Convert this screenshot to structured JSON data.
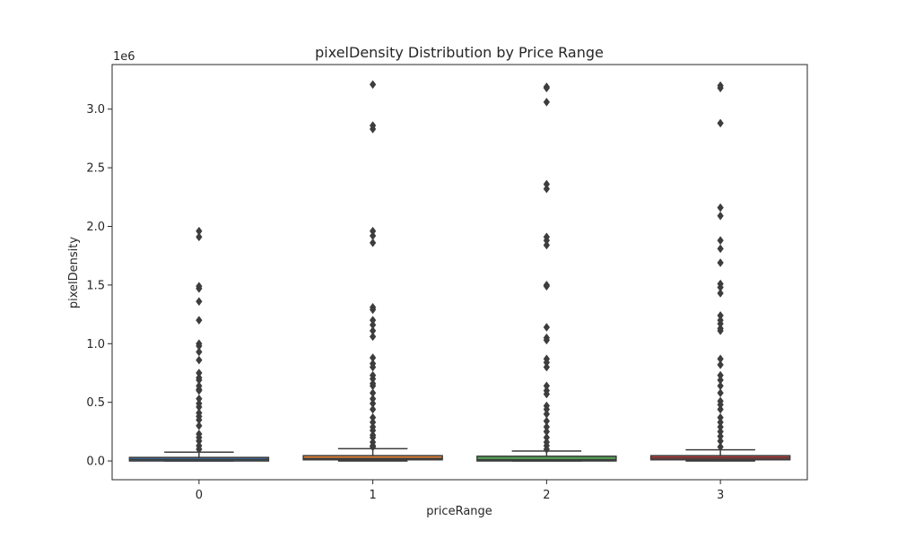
{
  "chart_data": {
    "type": "box",
    "title": "pixelDensity Distribution by Price Range",
    "xlabel": "priceRange",
    "ylabel": "pixelDensity",
    "y_scale_label": "1e6",
    "categories": [
      "0",
      "1",
      "2",
      "3"
    ],
    "y_tick_values": [
      0.0,
      0.5,
      1.0,
      1.5,
      2.0,
      2.5,
      3.0
    ],
    "y_tick_labels": [
      "0.0",
      "0.5",
      "1.0",
      "1.5",
      "2.0",
      "2.5",
      "3.0"
    ],
    "ylim": [
      -0.16,
      3.38
    ],
    "series": [
      {
        "name": "0",
        "color": "#3b75af",
        "box": {
          "min": 0.0,
          "q1": 0.0,
          "median": 0.012,
          "q3": 0.03,
          "max": 0.075
        },
        "outliers": [
          1.96,
          1.91,
          1.49,
          1.47,
          1.36,
          1.2,
          1.0,
          0.98,
          0.93,
          0.86,
          0.75,
          0.71,
          0.69,
          0.64,
          0.61,
          0.6,
          0.53,
          0.49,
          0.46,
          0.41,
          0.38,
          0.35,
          0.3,
          0.23,
          0.2,
          0.17,
          0.13,
          0.1
        ]
      },
      {
        "name": "1",
        "color": "#ef8636",
        "box": {
          "min": 0.0,
          "q1": 0.01,
          "median": 0.022,
          "q3": 0.045,
          "max": 0.105
        },
        "outliers": [
          3.21,
          2.86,
          2.83,
          1.96,
          1.92,
          1.86,
          1.31,
          1.29,
          1.2,
          1.16,
          1.11,
          1.06,
          0.88,
          0.83,
          0.8,
          0.73,
          0.7,
          0.66,
          0.64,
          0.58,
          0.53,
          0.49,
          0.44,
          0.37,
          0.33,
          0.29,
          0.26,
          0.22,
          0.2,
          0.16,
          0.13,
          0.12
        ]
      },
      {
        "name": "2",
        "color": "#529e52",
        "box": {
          "min": 0.0,
          "q1": 0.0,
          "median": 0.01,
          "q3": 0.04,
          "max": 0.085
        },
        "outliers": [
          3.19,
          3.18,
          3.06,
          2.36,
          2.32,
          1.91,
          1.88,
          1.84,
          1.5,
          1.49,
          1.14,
          1.05,
          1.03,
          0.87,
          0.84,
          0.8,
          0.64,
          0.6,
          0.57,
          0.47,
          0.44,
          0.4,
          0.34,
          0.29,
          0.25,
          0.2,
          0.16,
          0.13,
          0.1
        ]
      },
      {
        "name": "3",
        "color": "#c43d3d",
        "box": {
          "min": 0.0,
          "q1": 0.01,
          "median": 0.024,
          "q3": 0.045,
          "max": 0.095
        },
        "outliers": [
          3.2,
          3.18,
          2.88,
          2.16,
          2.09,
          1.88,
          1.81,
          1.69,
          1.51,
          1.48,
          1.43,
          1.24,
          1.2,
          1.17,
          1.13,
          1.11,
          0.87,
          0.82,
          0.73,
          0.69,
          0.64,
          0.58,
          0.51,
          0.48,
          0.44,
          0.37,
          0.33,
          0.29,
          0.25,
          0.21,
          0.17,
          0.12
        ]
      }
    ],
    "outlier_marker": "diamond",
    "outlier_color": "#3d3d3d",
    "line_color": "#3d3d3d",
    "grid": false,
    "legend": "none"
  }
}
